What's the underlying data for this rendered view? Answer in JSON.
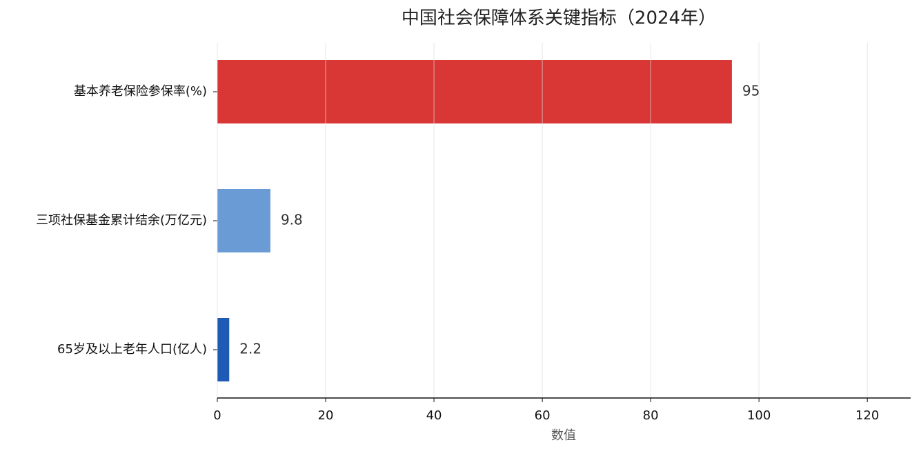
{
  "chart_data": {
    "type": "barh",
    "title": "中国社会保障体系关键指标（2024年）",
    "xlabel": "数值",
    "categories": [
      "基本养老保险参保率(%)",
      "三项社保基金累计结余(万亿元)",
      "65岁及以上老年人口(亿人)"
    ],
    "values": [
      95,
      9.8,
      2.2
    ],
    "colors": [
      "#d93636",
      "#6b9bd4",
      "#1f5bb5"
    ],
    "xlim": [
      0,
      128
    ],
    "xticks": [
      0,
      20,
      40,
      60,
      80,
      100,
      120
    ],
    "grid": true
  }
}
